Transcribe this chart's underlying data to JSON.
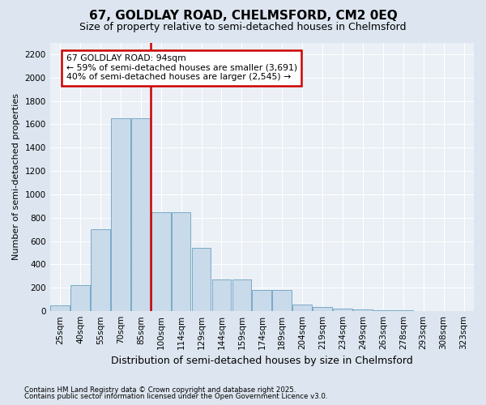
{
  "title1": "67, GOLDLAY ROAD, CHELMSFORD, CM2 0EQ",
  "title2": "Size of property relative to semi-detached houses in Chelmsford",
  "xlabel": "Distribution of semi-detached houses by size in Chelmsford",
  "ylabel": "Number of semi-detached properties",
  "bar_labels": [
    "25sqm",
    "40sqm",
    "55sqm",
    "70sqm",
    "85sqm",
    "100sqm",
    "114sqm",
    "129sqm",
    "144sqm",
    "159sqm",
    "174sqm",
    "189sqm",
    "204sqm",
    "219sqm",
    "234sqm",
    "249sqm",
    "263sqm",
    "278sqm",
    "293sqm",
    "308sqm",
    "323sqm"
  ],
  "bar_values": [
    50,
    220,
    700,
    1650,
    1650,
    850,
    850,
    540,
    270,
    270,
    185,
    185,
    60,
    35,
    20,
    15,
    10,
    5,
    3,
    2,
    1
  ],
  "bar_color": "#c9daea",
  "bar_edge_color": "#7aaac8",
  "vline_color": "#cc0000",
  "annotation_title": "67 GOLDLAY ROAD: 94sqm",
  "annotation_line1": "← 59% of semi-detached houses are smaller (3,691)",
  "annotation_line2": "40% of semi-detached houses are larger (2,545) →",
  "annotation_box_color": "white",
  "annotation_edge_color": "#cc0000",
  "ylim": [
    0,
    2300
  ],
  "yticks": [
    0,
    200,
    400,
    600,
    800,
    1000,
    1200,
    1400,
    1600,
    1800,
    2000,
    2200
  ],
  "footer1": "Contains HM Land Registry data © Crown copyright and database right 2025.",
  "footer2": "Contains public sector information licensed under the Open Government Licence v3.0.",
  "bg_color": "#dde6f0",
  "plot_bg_color": "#eaf0f6",
  "grid_color": "#ffffff",
  "title1_fontsize": 11,
  "title2_fontsize": 9,
  "tick_fontsize": 7.5,
  "ylabel_fontsize": 8,
  "xlabel_fontsize": 9
}
